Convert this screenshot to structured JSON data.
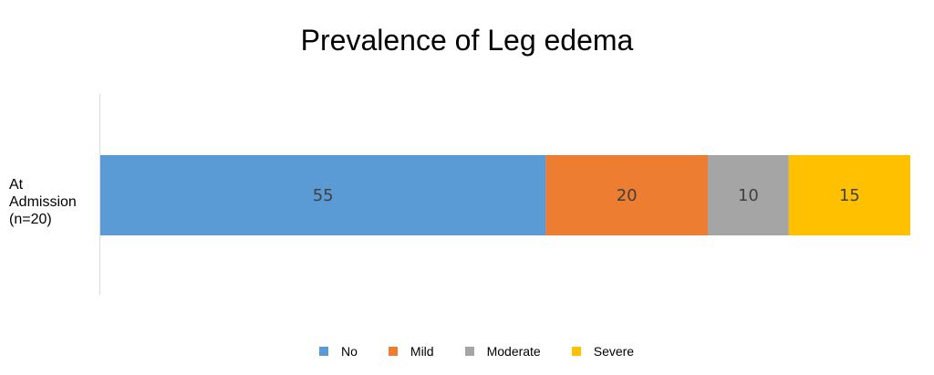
{
  "chart_data": {
    "type": "bar",
    "orientation": "horizontal",
    "stacked": true,
    "title": "Prevalence of Leg edema",
    "categories": [
      "At\nAdmission\n(n=20)"
    ],
    "series": [
      {
        "name": "No",
        "values": [
          55
        ],
        "color": "#5B9BD5"
      },
      {
        "name": "Mild",
        "values": [
          20
        ],
        "color": "#ED7D31"
      },
      {
        "name": "Moderate",
        "values": [
          10
        ],
        "color": "#A5A5A5"
      },
      {
        "name": "Severe",
        "values": [
          15
        ],
        "color": "#FFC000"
      }
    ],
    "xlim": [
      0,
      100
    ],
    "grid": false,
    "legend_position": "bottom"
  }
}
